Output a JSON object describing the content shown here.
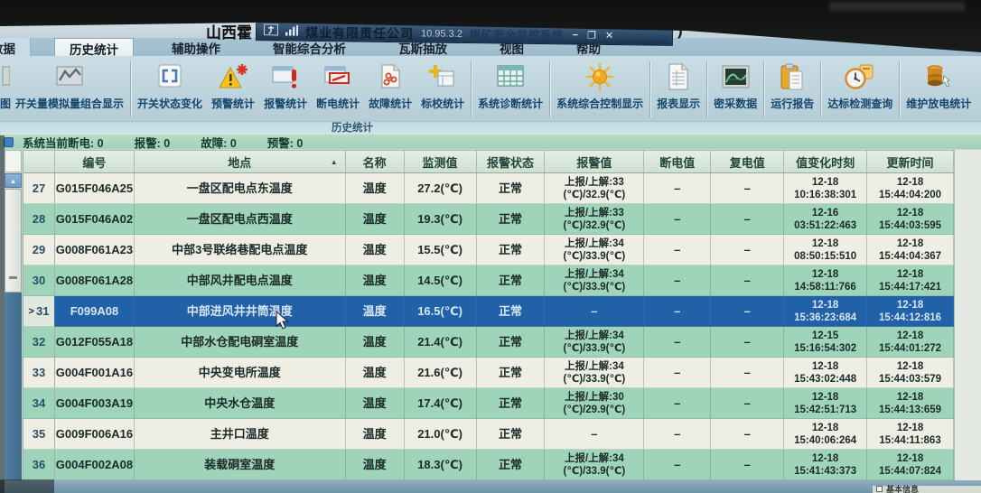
{
  "titlebar": {
    "prefix_title": "山西霍",
    "company": "煤业有限责任公司",
    "ip": "10.95.3.2",
    "system_name": "煤矿安全监控系统",
    "suffix": ")",
    "minimize_glyph": "–",
    "restore_glyph": "❐",
    "close_glyph": "✕"
  },
  "tabs": [
    {
      "label": "数据",
      "active": false,
      "cut": true
    },
    {
      "label": "历史统计",
      "active": true,
      "cut": false
    },
    {
      "label": "辅助操作",
      "active": false,
      "cut": false
    },
    {
      "label": "智能综合分析",
      "active": false,
      "cut": false
    },
    {
      "label": "瓦斯抽放",
      "active": false,
      "cut": false
    },
    {
      "label": "视图",
      "active": false,
      "cut": false
    },
    {
      "label": "帮助",
      "active": false,
      "cut": false
    }
  ],
  "toolbar": {
    "group_label": "历史统计",
    "buttons": [
      {
        "label": "图",
        "icon": "partial-chart",
        "partial": true,
        "sep_before": false
      },
      {
        "label": "开关量模拟量组合显示",
        "icon": "combo-chart",
        "partial": false,
        "sep_before": false
      },
      {
        "label": "开关状态变化",
        "icon": "switch-state",
        "partial": false,
        "sep_before": true
      },
      {
        "label": "预警统计",
        "icon": "prewarn",
        "partial": false,
        "sep_before": false
      },
      {
        "label": "报警统计",
        "icon": "alarm",
        "partial": false,
        "sep_before": false
      },
      {
        "label": "断电统计",
        "icon": "cutoff",
        "partial": false,
        "sep_before": false
      },
      {
        "label": "故障统计",
        "icon": "fault",
        "partial": false,
        "sep_before": false
      },
      {
        "label": "标校统计",
        "icon": "calib",
        "partial": false,
        "sep_before": false
      },
      {
        "label": "系统诊断统计",
        "icon": "sys-diag",
        "partial": false,
        "sep_before": true
      },
      {
        "label": "系统综合控制显示",
        "icon": "sys-ctrl",
        "partial": false,
        "sep_before": true
      },
      {
        "label": "报表显示",
        "icon": "report",
        "partial": false,
        "sep_before": true
      },
      {
        "label": "密采数据",
        "icon": "dense-data",
        "partial": false,
        "sep_before": true
      },
      {
        "label": "运行报告",
        "icon": "run-report",
        "partial": false,
        "sep_before": true
      },
      {
        "label": "达标检测查询",
        "icon": "standard-query",
        "partial": false,
        "sep_before": true
      },
      {
        "label": "维护放电统计",
        "icon": "maintain",
        "partial": false,
        "sep_before": true
      }
    ]
  },
  "status_bar": {
    "items": [
      {
        "label": "系统当前断电",
        "value": "0"
      },
      {
        "label": "报警",
        "value": "0"
      },
      {
        "label": "故障",
        "value": "0"
      },
      {
        "label": "预警",
        "value": "0"
      }
    ]
  },
  "table": {
    "headers": [
      "编号",
      "地点",
      "名称",
      "监测值",
      "报警状态",
      "报警值",
      "断电值",
      "复电值",
      "值变化时刻",
      "更新时间"
    ],
    "sort": {
      "column": "地点",
      "glyph": "▲"
    },
    "selected_marker": ">",
    "rows": [
      {
        "num": "27",
        "id": "G015F046A25",
        "location": "一盘区配电点东温度",
        "name": "温度",
        "value": "27.2(℃)",
        "alarm_status": "正常",
        "alarm_value": [
          "上报/上解:33",
          "(℃)/32.9(℃)"
        ],
        "cutoff_value": "–",
        "restore_value": "–",
        "change_time": [
          "12-18",
          "10:16:38:301"
        ],
        "update_time": [
          "12-18",
          "15:44:04:200"
        ],
        "selected": false
      },
      {
        "num": "28",
        "id": "G015F046A02",
        "location": "一盘区配电点西温度",
        "name": "温度",
        "value": "19.3(℃)",
        "alarm_status": "正常",
        "alarm_value": [
          "上报/上解:33",
          "(℃)/32.9(℃)"
        ],
        "cutoff_value": "–",
        "restore_value": "–",
        "change_time": [
          "12-16",
          "03:51:22:463"
        ],
        "update_time": [
          "12-18",
          "15:44:03:595"
        ],
        "selected": false
      },
      {
        "num": "29",
        "id": "G008F061A23",
        "location": "中部3号联络巷配电点温度",
        "name": "温度",
        "value": "15.5(℃)",
        "alarm_status": "正常",
        "alarm_value": [
          "上报/上解:34",
          "(℃)/33.9(℃)"
        ],
        "cutoff_value": "–",
        "restore_value": "–",
        "change_time": [
          "12-18",
          "08:50:15:510"
        ],
        "update_time": [
          "12-18",
          "15:44:04:367"
        ],
        "selected": false
      },
      {
        "num": "30",
        "id": "G008F061A28",
        "location": "中部风井配电点温度",
        "name": "温度",
        "value": "14.5(℃)",
        "alarm_status": "正常",
        "alarm_value": [
          "上报/上解:34",
          "(℃)/33.9(℃)"
        ],
        "cutoff_value": "–",
        "restore_value": "–",
        "change_time": [
          "12-18",
          "14:58:11:766"
        ],
        "update_time": [
          "12-18",
          "15:44:17:421"
        ],
        "selected": false
      },
      {
        "num": "31",
        "id": "F099A08",
        "location": "中部进风井井筒温度",
        "name": "温度",
        "value": "16.5(℃)",
        "alarm_status": "正常",
        "alarm_value": [
          "–"
        ],
        "cutoff_value": "–",
        "restore_value": "–",
        "change_time": [
          "12-18",
          "15:36:23:684"
        ],
        "update_time": [
          "12-18",
          "15:44:12:816"
        ],
        "selected": true
      },
      {
        "num": "32",
        "id": "G012F055A18",
        "location": "中部水仓配电硐室温度",
        "name": "温度",
        "value": "21.4(℃)",
        "alarm_status": "正常",
        "alarm_value": [
          "上报/上解:34",
          "(℃)/33.9(℃)"
        ],
        "cutoff_value": "–",
        "restore_value": "–",
        "change_time": [
          "12-15",
          "15:16:54:302"
        ],
        "update_time": [
          "12-18",
          "15:44:01:272"
        ],
        "selected": false
      },
      {
        "num": "33",
        "id": "G004F001A16",
        "location": "中央变电所温度",
        "name": "温度",
        "value": "21.6(℃)",
        "alarm_status": "正常",
        "alarm_value": [
          "上报/上解:34",
          "(℃)/33.9(℃)"
        ],
        "cutoff_value": "–",
        "restore_value": "–",
        "change_time": [
          "12-18",
          "15:43:02:448"
        ],
        "update_time": [
          "12-18",
          "15:44:03:579"
        ],
        "selected": false
      },
      {
        "num": "34",
        "id": "G004F003A19",
        "location": "中央水仓温度",
        "name": "温度",
        "value": "17.4(℃)",
        "alarm_status": "正常",
        "alarm_value": [
          "上报/上解:30",
          "(℃)/29.9(℃)"
        ],
        "cutoff_value": "–",
        "restore_value": "–",
        "change_time": [
          "12-18",
          "15:42:51:713"
        ],
        "update_time": [
          "12-18",
          "15:44:13:659"
        ],
        "selected": false
      },
      {
        "num": "35",
        "id": "G009F006A16",
        "location": "主井口温度",
        "name": "温度",
        "value": "21.0(℃)",
        "alarm_status": "正常",
        "alarm_value": [
          "–"
        ],
        "cutoff_value": "–",
        "restore_value": "–",
        "change_time": [
          "12-18",
          "15:40:06:264"
        ],
        "update_time": [
          "12-18",
          "15:44:11:863"
        ],
        "selected": false
      },
      {
        "num": "36",
        "id": "G004F002A08",
        "location": "装载硐室温度",
        "name": "温度",
        "value": "18.3(℃)",
        "alarm_status": "正常",
        "alarm_value": [
          "上报/上解:34",
          "(℃)/33.9(℃)"
        ],
        "cutoff_value": "–",
        "restore_value": "–",
        "change_time": [
          "12-18",
          "15:41:43:373"
        ],
        "update_time": [
          "12-18",
          "15:44:07:824"
        ],
        "selected": false
      }
    ]
  },
  "footer": {
    "checkbox_label": "基本信息"
  }
}
